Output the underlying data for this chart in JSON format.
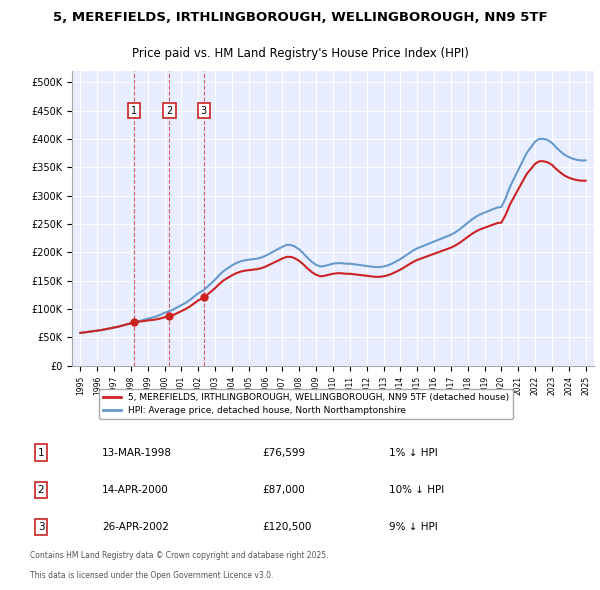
{
  "title1": "5, MEREFIELDS, IRTHLINGBOROUGH, WELLINGBOROUGH, NN9 5TF",
  "title2": "Price paid vs. HM Land Registry's House Price Index (HPI)",
  "ylabel": "",
  "background_color": "#f0f4ff",
  "plot_bg": "#e8eeff",
  "legend_label1": "5, MEREFIELDS, IRTHLINGBOROUGH, WELLINGBOROUGH, NN9 5TF (detached house)",
  "legend_label2": "HPI: Average price, detached house, North Northamptonshire",
  "footer1": "Contains HM Land Registry data © Crown copyright and database right 2025.",
  "footer2": "This data is licensed under the Open Government Licence v3.0.",
  "transactions": [
    {
      "num": 1,
      "date": "13-MAR-1998",
      "price": 76599,
      "hpi_diff": "1% ↓ HPI",
      "year": 1998.2
    },
    {
      "num": 2,
      "date": "14-APR-2000",
      "price": 87000,
      "hpi_diff": "10% ↓ HPI",
      "year": 2000.29
    },
    {
      "num": 3,
      "date": "26-APR-2002",
      "price": 120500,
      "hpi_diff": "9% ↓ HPI",
      "year": 2002.32
    }
  ],
  "hpi_years": [
    1995,
    1995.25,
    1995.5,
    1995.75,
    1996,
    1996.25,
    1996.5,
    1996.75,
    1997,
    1997.25,
    1997.5,
    1997.75,
    1998,
    1998.25,
    1998.5,
    1998.75,
    1999,
    1999.25,
    1999.5,
    1999.75,
    2000,
    2000.25,
    2000.5,
    2000.75,
    2001,
    2001.25,
    2001.5,
    2001.75,
    2002,
    2002.25,
    2002.5,
    2002.75,
    2003,
    2003.25,
    2003.5,
    2003.75,
    2004,
    2004.25,
    2004.5,
    2004.75,
    2005,
    2005.25,
    2005.5,
    2005.75,
    2006,
    2006.25,
    2006.5,
    2006.75,
    2007,
    2007.25,
    2007.5,
    2007.75,
    2008,
    2008.25,
    2008.5,
    2008.75,
    2009,
    2009.25,
    2009.5,
    2009.75,
    2010,
    2010.25,
    2010.5,
    2010.75,
    2011,
    2011.25,
    2011.5,
    2011.75,
    2012,
    2012.25,
    2012.5,
    2012.75,
    2013,
    2013.25,
    2013.5,
    2013.75,
    2014,
    2014.25,
    2014.5,
    2014.75,
    2015,
    2015.25,
    2015.5,
    2015.75,
    2016,
    2016.25,
    2016.5,
    2016.75,
    2017,
    2017.25,
    2017.5,
    2017.75,
    2018,
    2018.25,
    2018.5,
    2018.75,
    2019,
    2019.25,
    2019.5,
    2019.75,
    2020,
    2020.25,
    2020.5,
    2020.75,
    2021,
    2021.25,
    2021.5,
    2021.75,
    2022,
    2022.25,
    2022.5,
    2022.75,
    2023,
    2023.25,
    2023.5,
    2023.75,
    2024,
    2024.25,
    2024.5,
    2024.75,
    2025
  ],
  "hpi_values": [
    58000,
    59000,
    60000,
    61000,
    62000,
    63000,
    64500,
    66000,
    67500,
    69000,
    71000,
    73000,
    75000,
    77000,
    79000,
    81000,
    83000,
    85000,
    87000,
    90000,
    93500,
    96000,
    99000,
    103000,
    107000,
    111000,
    116000,
    122000,
    128000,
    132000,
    138000,
    145000,
    152000,
    160000,
    167000,
    172000,
    177000,
    181000,
    184000,
    186000,
    187000,
    188000,
    189000,
    191000,
    194000,
    198000,
    202000,
    206000,
    210000,
    213000,
    213000,
    210000,
    205000,
    198000,
    190000,
    183000,
    178000,
    175000,
    176000,
    178000,
    180000,
    181000,
    181000,
    180000,
    180000,
    179000,
    178000,
    177000,
    176000,
    175000,
    174000,
    174000,
    175000,
    177000,
    180000,
    184000,
    188000,
    193000,
    198000,
    203000,
    207000,
    210000,
    213000,
    216000,
    219000,
    222000,
    225000,
    228000,
    231000,
    235000,
    240000,
    246000,
    252000,
    258000,
    263000,
    267000,
    270000,
    273000,
    276000,
    279000,
    280000,
    295000,
    315000,
    330000,
    345000,
    360000,
    375000,
    385000,
    395000,
    400000,
    400000,
    398000,
    393000,
    385000,
    378000,
    372000,
    368000,
    365000,
    363000,
    362000,
    362000
  ]
}
